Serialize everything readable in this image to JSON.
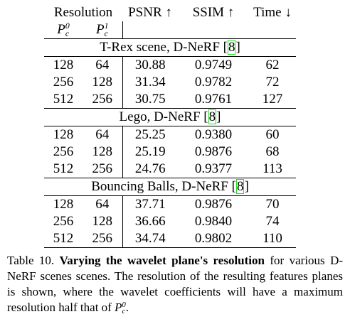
{
  "table": {
    "header": {
      "resolution": "Resolution",
      "psnr": "PSNR ↑",
      "ssim": "SSIM ↑",
      "time": "Time ↓",
      "p0": {
        "base": "P",
        "sub": "c",
        "sup": "0"
      },
      "p1": {
        "base": "P",
        "sub": "c",
        "sup": "1"
      }
    },
    "sections": [
      {
        "title": "T-Rex scene, D-NeRF",
        "cite_open": "[",
        "cite": "8",
        "cite_close": "]",
        "rows": [
          [
            "128",
            "64",
            "30.88",
            "0.9749",
            "62"
          ],
          [
            "256",
            "128",
            "31.34",
            "0.9782",
            "72"
          ],
          [
            "512",
            "256",
            "30.75",
            "0.9761",
            "127"
          ]
        ]
      },
      {
        "title": "Lego, D-NeRF",
        "cite_open": "[",
        "cite": "8",
        "cite_close": "]",
        "rows": [
          [
            "128",
            "64",
            "25.25",
            "0.9380",
            "60"
          ],
          [
            "256",
            "128",
            "25.19",
            "0.9876",
            "68"
          ],
          [
            "512",
            "256",
            "24.76",
            "0.9377",
            "113"
          ]
        ]
      },
      {
        "title": "Bouncing Balls, D-NeRF",
        "cite_open": "[",
        "cite": "8",
        "cite_close": "]",
        "rows": [
          [
            "128",
            "64",
            "37.71",
            "0.9876",
            "70"
          ],
          [
            "256",
            "128",
            "36.66",
            "0.9840",
            "74"
          ],
          [
            "512",
            "256",
            "34.74",
            "0.9802",
            "110"
          ]
        ]
      }
    ]
  },
  "caption": {
    "label": "Table 10.",
    "bold": "Varying the wavelet plane's resolution",
    "text": "for various D-NeRF scenes scenes. The resolution of the resulting features planes is shown, where the wavelet coefficients will have a maximum resolution half that of",
    "p": {
      "base": "P",
      "sub": "c",
      "sup": "0"
    },
    "end": "."
  }
}
